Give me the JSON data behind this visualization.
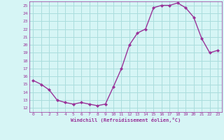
{
  "x": [
    0,
    1,
    2,
    3,
    4,
    5,
    6,
    7,
    8,
    9,
    10,
    11,
    12,
    13,
    14,
    15,
    16,
    17,
    18,
    19,
    20,
    21,
    22,
    23
  ],
  "y": [
    15.5,
    15.0,
    14.3,
    13.0,
    12.7,
    12.5,
    12.7,
    12.5,
    12.3,
    12.5,
    14.7,
    17.0,
    20.0,
    21.5,
    22.0,
    24.7,
    25.0,
    25.0,
    25.3,
    24.7,
    23.5,
    20.8,
    19.0,
    19.3
  ],
  "line_color": "#993399",
  "marker_color": "#993399",
  "bg_color": "#d6f5f5",
  "grid_color": "#aadddd",
  "axis_color": "#993399",
  "xlabel": "Windchill (Refroidissement éolien,°C)",
  "xlim_min": -0.5,
  "xlim_max": 23.5,
  "ylim_min": 11.5,
  "ylim_max": 25.5,
  "yticks": [
    12,
    13,
    14,
    15,
    16,
    17,
    18,
    19,
    20,
    21,
    22,
    23,
    24,
    25
  ],
  "xticks": [
    0,
    1,
    2,
    3,
    4,
    5,
    6,
    7,
    8,
    9,
    10,
    11,
    12,
    13,
    14,
    15,
    16,
    17,
    18,
    19,
    20,
    21,
    22,
    23
  ]
}
